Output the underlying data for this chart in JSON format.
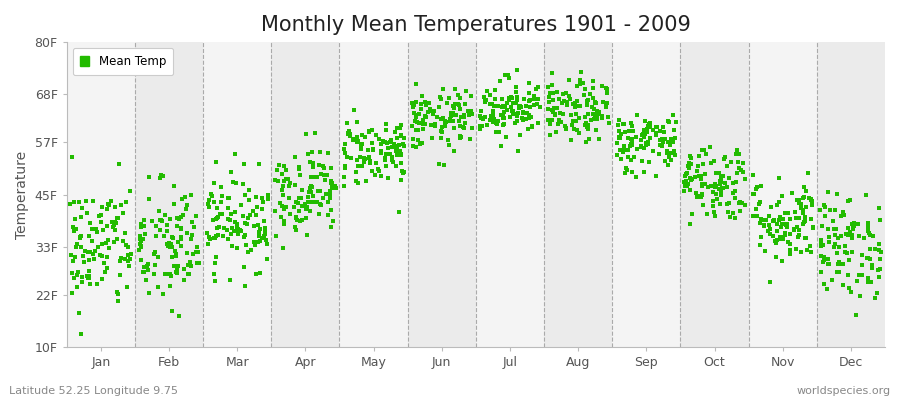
{
  "title": "Monthly Mean Temperatures 1901 - 2009",
  "ylabel": "Temperature",
  "xlabel": "",
  "yticks": [
    10,
    22,
    33,
    45,
    57,
    68,
    80
  ],
  "ytick_labels": [
    "10F",
    "22F",
    "33F",
    "45F",
    "57F",
    "68F",
    "80F"
  ],
  "ylim": [
    10,
    80
  ],
  "months": [
    "Jan",
    "Feb",
    "Mar",
    "Apr",
    "May",
    "Jun",
    "Jul",
    "Aug",
    "Sep",
    "Oct",
    "Nov",
    "Dec"
  ],
  "dot_color": "#22bb00",
  "legend_label": "Mean Temp",
  "bottom_left": "Latitude 52.25 Longitude 9.75",
  "bottom_right": "worldspecies.org",
  "title_fontsize": 15,
  "bg_color_odd": "#f4f4f4",
  "bg_color_even": "#ebebeb",
  "mean_temps_F": [
    33,
    33,
    39,
    46,
    55,
    62,
    65,
    64,
    57,
    48,
    39,
    33
  ],
  "std_temps_F": [
    7.5,
    7.5,
    5.5,
    5.0,
    4.0,
    3.5,
    3.5,
    3.5,
    3.5,
    4.5,
    5.0,
    6.0
  ],
  "n_years": 109,
  "seed": 42
}
